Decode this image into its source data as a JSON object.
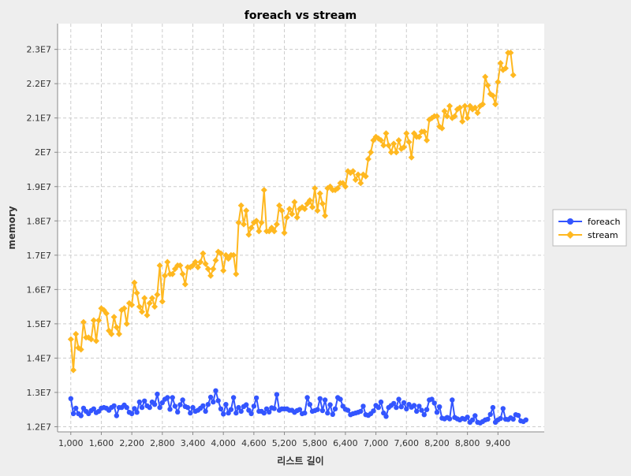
{
  "chart_data": {
    "type": "line",
    "title": "foreach vs stream",
    "xlabel": "리스트 길이",
    "ylabel": "memory",
    "x_range": [
      1000,
      10000
    ],
    "x_step": 50,
    "xlim": [
      740,
      10310
    ],
    "ylim": [
      11850000,
      23750000
    ],
    "x_ticks": [
      "1,000",
      "1,600",
      "2,200",
      "2,800",
      "3,400",
      "4,000",
      "4,600",
      "5,200",
      "5,800",
      "6,400",
      "7,000",
      "7,600",
      "8,200",
      "8,800",
      "9,400"
    ],
    "x_tick_values": [
      1000,
      1600,
      2200,
      2800,
      3400,
      4000,
      4600,
      5200,
      5800,
      6400,
      7000,
      7600,
      8200,
      8800,
      9400
    ],
    "y_ticks": [
      "1.2E7",
      "1.3E7",
      "1.4E7",
      "1.5E7",
      "1.6E7",
      "1.7E7",
      "1.8E7",
      "1.9E7",
      "2E7",
      "2.1E7",
      "2.2E7",
      "2.3E7"
    ],
    "y_tick_values": [
      12000000,
      13000000,
      14000000,
      15000000,
      16000000,
      17000000,
      18000000,
      19000000,
      20000000,
      21000000,
      22000000,
      23000000
    ],
    "grid": true,
    "legend_position": "right",
    "series": [
      {
        "name": "foreach",
        "color": "#3355ff",
        "marker": "circle",
        "values": [
          12820000,
          12380000,
          12540000,
          12380000,
          12320000,
          12540000,
          12450000,
          12380000,
          12470000,
          12520000,
          12410000,
          12450000,
          12540000,
          12560000,
          12540000,
          12480000,
          12560000,
          12610000,
          12320000,
          12560000,
          12560000,
          12630000,
          12560000,
          12420000,
          12380000,
          12530000,
          12420000,
          12720000,
          12560000,
          12750000,
          12610000,
          12560000,
          12720000,
          12650000,
          12950000,
          12560000,
          12700000,
          12800000,
          12850000,
          12510000,
          12850000,
          12600000,
          12430000,
          12640000,
          12780000,
          12590000,
          12560000,
          12400000,
          12560000,
          12450000,
          12480000,
          12540000,
          12610000,
          12450000,
          12650000,
          12860000,
          12720000,
          13050000,
          12760000,
          12520000,
          12370000,
          12650000,
          12400000,
          12500000,
          12850000,
          12400000,
          12560000,
          12450000,
          12590000,
          12640000,
          12480000,
          12380000,
          12600000,
          12840000,
          12450000,
          12450000,
          12400000,
          12520000,
          12430000,
          12550000,
          12530000,
          12940000,
          12480000,
          12520000,
          12520000,
          12520000,
          12480000,
          12480000,
          12420000,
          12470000,
          12500000,
          12380000,
          12400000,
          12850000,
          12650000,
          12450000,
          12470000,
          12500000,
          12820000,
          12470000,
          12780000,
          12400000,
          12640000,
          12360000,
          12520000,
          12850000,
          12800000,
          12600000,
          12510000,
          12480000,
          12350000,
          12380000,
          12400000,
          12420000,
          12450000,
          12600000,
          12350000,
          12330000,
          12380000,
          12460000,
          12620000,
          12560000,
          12720000,
          12400000,
          12300000,
          12560000,
          12620000,
          12680000,
          12560000,
          12800000,
          12580000,
          12700000,
          12520000,
          12650000,
          12570000,
          12620000,
          12450000,
          12600000,
          12480000,
          12350000,
          12500000,
          12780000,
          12800000,
          12690000,
          12420000,
          12580000,
          12250000,
          12230000,
          12270000,
          12230000,
          12780000,
          12270000,
          12230000,
          12200000,
          12240000,
          12220000,
          12280000,
          12130000,
          12200000,
          12320000,
          12130000,
          12110000,
          12150000,
          12200000,
          12220000,
          12360000,
          12560000,
          12130000,
          12200000,
          12240000,
          12530000,
          12220000,
          12210000,
          12260000,
          12220000,
          12350000,
          12330000,
          12170000,
          12150000,
          12200000
        ]
      },
      {
        "name": "stream",
        "color": "#ffb820",
        "marker": "diamond",
        "values": [
          14550000,
          13650000,
          14700000,
          14300000,
          14250000,
          15050000,
          14600000,
          14600000,
          14550000,
          15100000,
          14500000,
          15100000,
          15450000,
          15400000,
          15300000,
          14800000,
          14700000,
          15200000,
          14900000,
          14700000,
          15400000,
          15450000,
          15000000,
          15600000,
          15550000,
          16200000,
          15900000,
          15500000,
          15350000,
          15750000,
          15250000,
          15600000,
          15750000,
          15500000,
          15850000,
          16700000,
          15650000,
          16400000,
          16800000,
          16450000,
          16450000,
          16600000,
          16700000,
          16700000,
          16450000,
          16150000,
          16650000,
          16650000,
          16700000,
          16800000,
          16650000,
          16800000,
          17050000,
          16750000,
          16600000,
          16400000,
          16600000,
          16850000,
          17100000,
          17050000,
          16550000,
          17000000,
          16900000,
          17000000,
          17000000,
          16450000,
          17950000,
          18450000,
          17900000,
          18300000,
          17600000,
          17800000,
          17950000,
          18000000,
          17700000,
          17950000,
          18900000,
          17700000,
          17700000,
          17800000,
          17700000,
          17900000,
          18450000,
          18300000,
          17650000,
          18100000,
          18350000,
          18200000,
          18550000,
          18100000,
          18350000,
          18400000,
          18350000,
          18500000,
          18600000,
          18400000,
          18950000,
          18300000,
          18800000,
          18500000,
          18150000,
          18950000,
          19000000,
          18900000,
          18900000,
          18950000,
          19100000,
          19100000,
          19000000,
          19450000,
          19400000,
          19450000,
          19200000,
          19350000,
          19100000,
          19350000,
          19300000,
          19800000,
          20000000,
          20350000,
          20450000,
          20400000,
          20350000,
          20200000,
          20550000,
          20200000,
          20000000,
          20250000,
          20000000,
          20350000,
          20100000,
          20150000,
          20550000,
          20300000,
          19850000,
          20550000,
          20450000,
          20450000,
          20600000,
          20600000,
          20350000,
          20950000,
          21000000,
          21050000,
          21050000,
          20750000,
          20700000,
          21200000,
          21050000,
          21350000,
          21000000,
          21050000,
          21250000,
          21300000,
          20900000,
          21350000,
          21000000,
          21350000,
          21250000,
          21300000,
          21150000,
          21350000,
          21400000,
          22200000,
          21950000,
          21700000,
          21650000,
          21400000,
          22050000,
          22600000,
          22400000,
          22450000,
          22900000,
          22900000,
          22250000
        ]
      }
    ]
  }
}
